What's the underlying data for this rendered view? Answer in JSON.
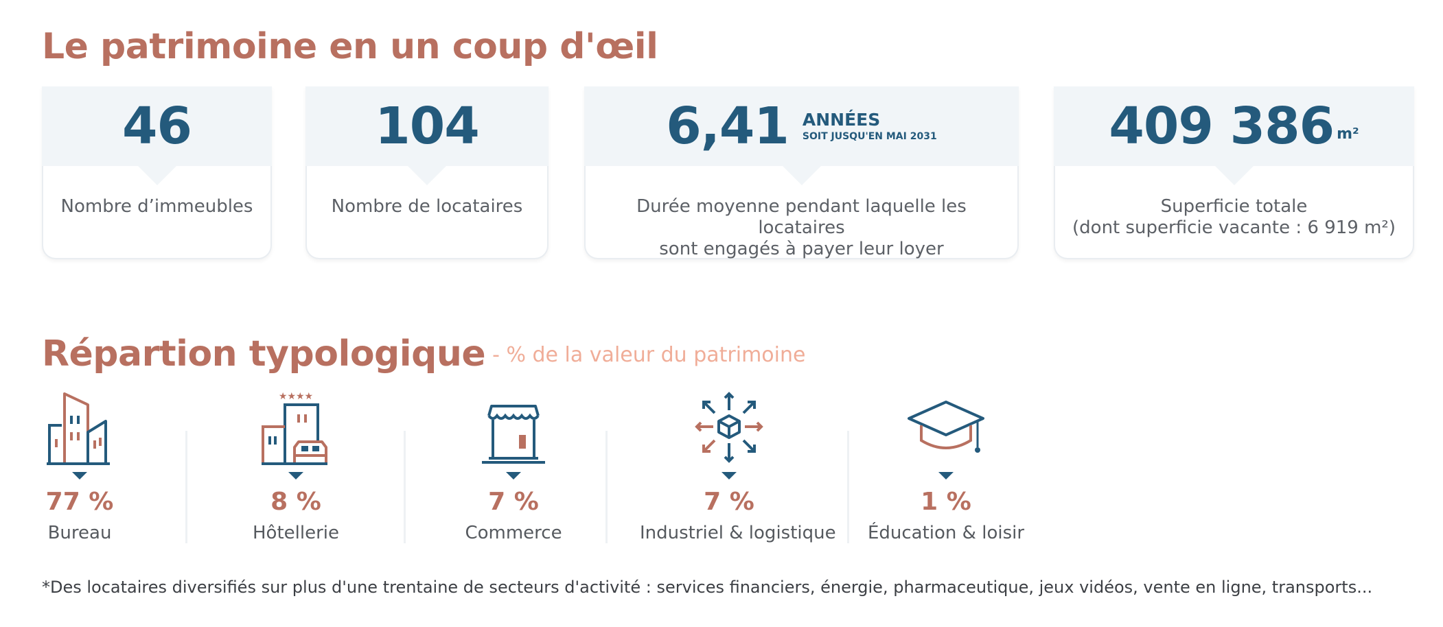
{
  "heading1": "Le patrimoine en un coup d'œil",
  "cards": [
    {
      "value": "46",
      "label": "Nombre d’immeubles"
    },
    {
      "value": "104",
      "label": "Nombre de locataires"
    },
    {
      "value": "6,41",
      "unit_big": "ANNÉES",
      "unit_small": "SOIT JUSQU'EN MAI 2031",
      "label_line1": "Durée moyenne pendant laquelle les locataires",
      "label_line2": "sont engagés à payer leur loyer"
    },
    {
      "value": "409 386",
      "unit": "m²",
      "label_line1": "Superficie totale",
      "label_line2": "(dont superficie vacante : 6 919 m²)"
    }
  ],
  "heading2": "Répartion typologique",
  "heading2_sub": "- % de la valeur du patrimoine",
  "types": [
    {
      "icon": "office-building-icon",
      "percent": "77 %",
      "label": "Bureau"
    },
    {
      "icon": "hotel-icon",
      "percent": "8 %",
      "label": "Hôtellerie"
    },
    {
      "icon": "shop-icon",
      "percent": "7 %",
      "label": "Commerce"
    },
    {
      "icon": "logistics-box-icon",
      "percent": "7 %",
      "label": "Industriel & logistique"
    },
    {
      "icon": "graduation-cap-icon",
      "percent": "1 %",
      "label": "Éducation & loisir"
    }
  ],
  "footnote": "*Des locataires diversifiés sur plus d'une trentaine de secteurs d'activité : services financiers, énergie, pharmaceutique, jeux vidéos, vente en ligne, transports...",
  "colors": {
    "accent": "#b87060",
    "primary": "#245a7c",
    "light": "#f1f5f8",
    "subtitle": "#f0ad98"
  }
}
